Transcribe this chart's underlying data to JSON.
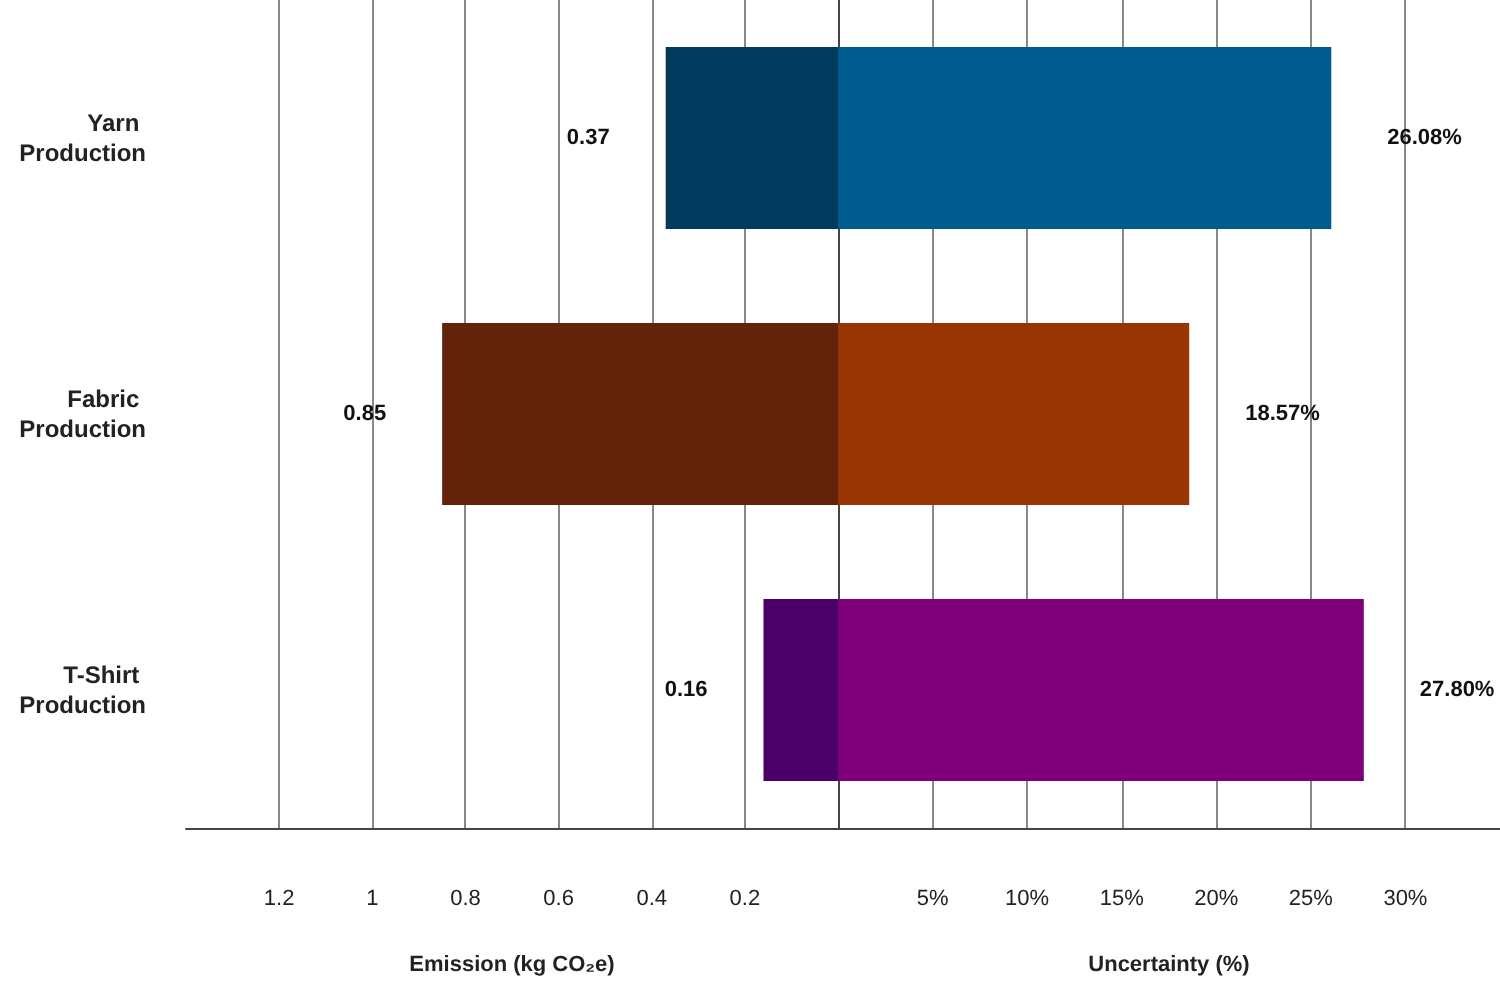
{
  "chart_data": [
    {
      "type": "bar",
      "orientation": "horizontal",
      "categories": [
        "Yarn Production",
        "Fabric Production",
        "T-Shirt Production"
      ],
      "series": [
        {
          "values": [
            0.37,
            0.85,
            0.16
          ],
          "colors": [
            "#003a5c",
            "#62230a",
            "#4b0068"
          ],
          "value_labels": [
            "0.37",
            "0.85",
            "0.16"
          ]
        }
      ],
      "xlim": [
        1.4,
        0
      ],
      "xticks": [
        1.2,
        1,
        0.8,
        0.6,
        0.4,
        0.2
      ],
      "xlabel": "Emission (kg CO₂e)",
      "grid": "x"
    },
    {
      "type": "bar",
      "orientation": "horizontal",
      "categories": [
        "Yarn Production",
        "Fabric Production",
        "T-Shirt Production"
      ],
      "series": [
        {
          "values": [
            26.08,
            18.57,
            27.8
          ],
          "colors": [
            "#005b8f",
            "#983503",
            "#7d007a"
          ],
          "value_labels": [
            "26.08%",
            "18.57%",
            "27.80%"
          ]
        }
      ],
      "xlim": [
        0,
        35
      ],
      "xticks": [
        {
          "value": 5,
          "label": "5%"
        },
        {
          "value": 10,
          "label": "10%"
        },
        {
          "value": 15,
          "label": "15%"
        },
        {
          "value": 20,
          "label": "20%"
        },
        {
          "value": 25,
          "label": "25%"
        },
        {
          "value": 30,
          "label": "30%"
        }
      ],
      "xlabel": "Uncertainty (%)",
      "grid": "x",
      "tick_labels": "x"
    }
  ]
}
